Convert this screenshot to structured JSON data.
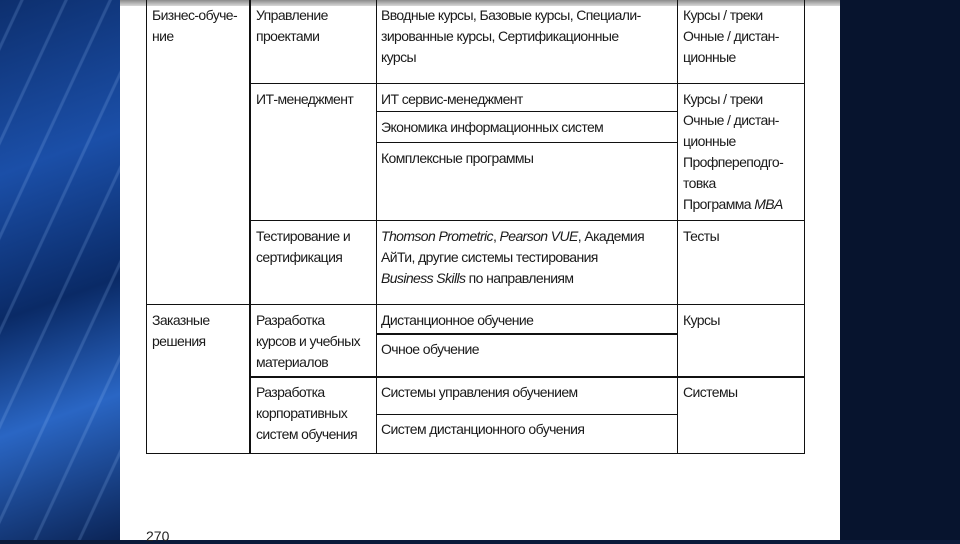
{
  "table": {
    "rows": [
      {
        "category": "Бизнес-обуче-\nние",
        "direction": "Управление\nпроектами",
        "programs": [
          "Вводные курсы, Базовые курсы, Специали-\nзированные курсы, Сертификационные\nкурсы"
        ],
        "format": "Курсы / треки\nОчные / дистан-\nционные"
      },
      {
        "direction": "ИТ-менеджмент",
        "programs": [
          "ИТ сервис-менеджмент",
          "Экономика информационных систем",
          "Комплексные программы"
        ],
        "format": "Курсы / треки\nОчные / дистан-\nционные\nПрофпереподго-\nтовка\nПрограмма ",
        "format_italic": "MBA"
      },
      {
        "direction": "Тестирование и\nсертификация",
        "programs_rich": {
          "i1": "Thomson Prometric",
          "s1": ", ",
          "i2": "Pearson VUE",
          "s2": ", Академия\nАйТи, другие системы тестирования\n",
          "i3": "Business Skills",
          "s3": " по направлениям"
        },
        "format": "Тесты"
      },
      {
        "category": "Заказные\nрешения",
        "direction": "Разработка\nкурсов и учебных\nматериалов",
        "programs": [
          "Дистанционное обучение",
          "Очное обучение"
        ],
        "format": "Курсы"
      },
      {
        "direction": "Разработка\nкорпоративных\nсистем обучения",
        "programs": [
          "Системы управления обучением",
          "Систем дистанционного обучения"
        ],
        "format": "Системы"
      }
    ]
  },
  "page_number": "270"
}
